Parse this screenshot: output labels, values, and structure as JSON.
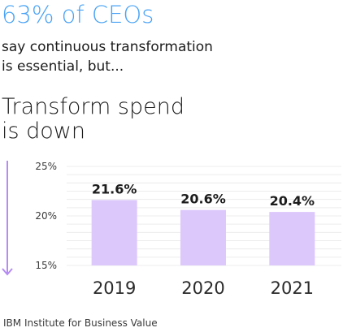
{
  "header": {
    "headline": "63% of CEOs",
    "subhead_line1": "say continuous transformation",
    "subhead_line2": "is essential, but...",
    "spend_title_line1": "Transform spend",
    "spend_title_line2": "is down"
  },
  "colors": {
    "headline": "#4aa3f5",
    "bar": "#dcc8fb",
    "arrow": "#b58cf2",
    "grid": "#ececec"
  },
  "icons": {
    "trend_arrow": "down-arrow-icon"
  },
  "chart_data": {
    "type": "bar",
    "categories": [
      "2019",
      "2020",
      "2021"
    ],
    "values": [
      21.6,
      20.6,
      20.4
    ],
    "data_labels": [
      "21.6%",
      "20.6%",
      "20.4%"
    ],
    "yticks": [
      "25%",
      "20%",
      "15%"
    ],
    "ylim": [
      15,
      25
    ],
    "unit": "%",
    "grid": true,
    "title": "",
    "xlabel": "",
    "ylabel": ""
  },
  "footer": {
    "source": "IBM Institute for Business Value"
  }
}
